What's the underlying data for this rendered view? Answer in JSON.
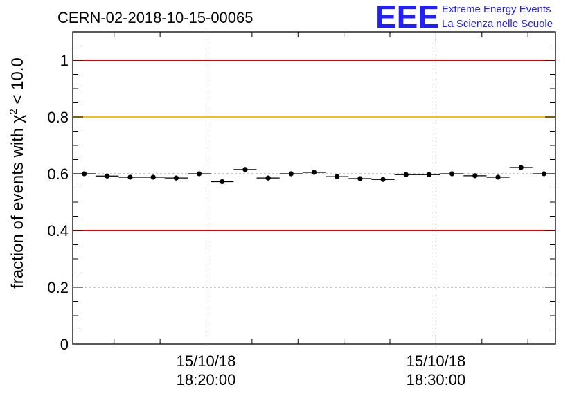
{
  "header": {
    "title": "CERN-02-2018-10-15-00065",
    "logo_text": "EEE",
    "logo_line1": "Extreme Energy Events",
    "logo_line2": "La Scienza nelle Scuole"
  },
  "chart_data": {
    "type": "scatter",
    "title": "CERN-02-2018-10-15-00065",
    "ylabel": {
      "prefix": "fraction of events with ",
      "symbol": "χ",
      "superscript": "2",
      "suffix": " < 10.0"
    },
    "xlabel": "",
    "ylim": [
      0,
      1.1
    ],
    "xlim_minutes": [
      14.2,
      35.2
    ],
    "y_ticks": [
      {
        "value": 0,
        "label": "0"
      },
      {
        "value": 0.2,
        "label": "0.2"
      },
      {
        "value": 0.4,
        "label": "0.4"
      },
      {
        "value": 0.6,
        "label": "0.6"
      },
      {
        "value": 0.8,
        "label": "0.8"
      },
      {
        "value": 1.0,
        "label": "1"
      }
    ],
    "x_time_ticks": [
      {
        "minute": 20,
        "date": "15/10/18",
        "time": "18:20:00"
      },
      {
        "minute": 30,
        "date": "15/10/18",
        "time": "18:30:00"
      }
    ],
    "x_unit": "minutes after 18:00:00 on 15/10/18",
    "bin_width_minutes": 1,
    "reference_lines": [
      {
        "value": 1.0,
        "color": "#e00000"
      },
      {
        "value": 0.8,
        "color": "#ffbf00"
      },
      {
        "value": 0.4,
        "color": "#e00000"
      }
    ],
    "grid": true,
    "series": [
      {
        "x": [
          14.7,
          15.7,
          16.7,
          17.7,
          18.7,
          19.7,
          20.7,
          21.7,
          22.7,
          23.7,
          24.7,
          25.7,
          26.7,
          27.7,
          28.7,
          29.7,
          30.7,
          31.7,
          32.7,
          33.7,
          34.7
        ],
        "values": [
          0.6,
          0.592,
          0.588,
          0.588,
          0.585,
          0.6,
          0.572,
          0.615,
          0.585,
          0.6,
          0.605,
          0.59,
          0.583,
          0.58,
          0.597,
          0.597,
          0.6,
          0.593,
          0.588,
          0.622,
          0.6
        ]
      }
    ],
    "colors": {
      "axis": "#000000",
      "grid": "#9a9a9a",
      "points": "#000000",
      "logo": "#1f1fff"
    }
  }
}
